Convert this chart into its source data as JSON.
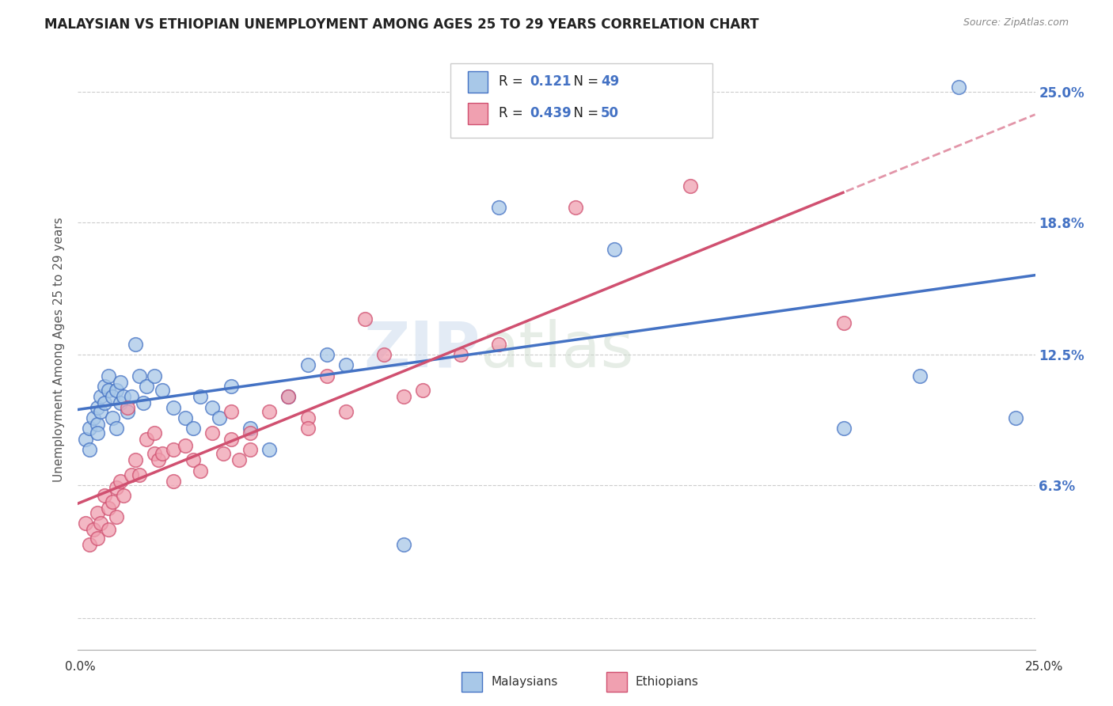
{
  "title": "MALAYSIAN VS ETHIOPIAN UNEMPLOYMENT AMONG AGES 25 TO 29 YEARS CORRELATION CHART",
  "source": "Source: ZipAtlas.com",
  "ylabel": "Unemployment Among Ages 25 to 29 years",
  "xlim": [
    0.0,
    25.0
  ],
  "ylim": [
    -1.5,
    27.0
  ],
  "ytick_vals": [
    0.0,
    6.3,
    12.5,
    18.8,
    25.0
  ],
  "ytick_labels": [
    "",
    "6.3%",
    "12.5%",
    "18.8%",
    "25.0%"
  ],
  "legend_r_malaysian": "0.121",
  "legend_n_malaysian": "49",
  "legend_r_ethiopian": "0.439",
  "legend_n_ethiopian": "50",
  "malaysian_color": "#a8c8e8",
  "ethiopian_color": "#f0a0b0",
  "trend_malaysian_color": "#4472c4",
  "trend_ethiopian_color": "#d05070",
  "malaysian_x": [
    0.2,
    0.3,
    0.3,
    0.4,
    0.5,
    0.5,
    0.5,
    0.6,
    0.6,
    0.7,
    0.7,
    0.8,
    0.8,
    0.9,
    0.9,
    1.0,
    1.0,
    1.1,
    1.1,
    1.2,
    1.3,
    1.4,
    1.5,
    1.6,
    1.7,
    1.8,
    2.0,
    2.2,
    2.5,
    2.8,
    3.0,
    3.2,
    3.5,
    3.7,
    4.0,
    4.5,
    5.0,
    5.5,
    6.0,
    6.5,
    7.0,
    8.5,
    10.0,
    11.0,
    14.0,
    20.0,
    22.0,
    23.0,
    24.5
  ],
  "malaysian_y": [
    8.5,
    8.0,
    9.0,
    9.5,
    9.2,
    8.8,
    10.0,
    9.8,
    10.5,
    10.2,
    11.0,
    10.8,
    11.5,
    9.5,
    10.5,
    9.0,
    10.8,
    10.2,
    11.2,
    10.5,
    9.8,
    10.5,
    13.0,
    11.5,
    10.2,
    11.0,
    11.5,
    10.8,
    10.0,
    9.5,
    9.0,
    10.5,
    10.0,
    9.5,
    11.0,
    9.0,
    8.0,
    10.5,
    12.0,
    12.5,
    12.0,
    3.5,
    24.5,
    19.5,
    17.5,
    9.0,
    11.5,
    25.2,
    9.5
  ],
  "ethiopian_x": [
    0.2,
    0.3,
    0.4,
    0.5,
    0.5,
    0.6,
    0.7,
    0.8,
    0.8,
    0.9,
    1.0,
    1.0,
    1.1,
    1.2,
    1.3,
    1.4,
    1.5,
    1.6,
    1.8,
    2.0,
    2.0,
    2.1,
    2.2,
    2.5,
    2.5,
    2.8,
    3.0,
    3.2,
    3.5,
    3.8,
    4.0,
    4.0,
    4.2,
    4.5,
    4.5,
    5.0,
    5.5,
    6.0,
    6.0,
    6.5,
    7.0,
    7.5,
    8.0,
    8.5,
    9.0,
    10.0,
    11.0,
    13.0,
    16.0,
    20.0
  ],
  "ethiopian_y": [
    4.5,
    3.5,
    4.2,
    3.8,
    5.0,
    4.5,
    5.8,
    5.2,
    4.2,
    5.5,
    6.2,
    4.8,
    6.5,
    5.8,
    10.0,
    6.8,
    7.5,
    6.8,
    8.5,
    7.8,
    8.8,
    7.5,
    7.8,
    8.0,
    6.5,
    8.2,
    7.5,
    7.0,
    8.8,
    7.8,
    9.8,
    8.5,
    7.5,
    8.8,
    8.0,
    9.8,
    10.5,
    9.5,
    9.0,
    11.5,
    9.8,
    14.2,
    12.5,
    10.5,
    10.8,
    12.5,
    13.0,
    19.5,
    20.5,
    14.0
  ]
}
